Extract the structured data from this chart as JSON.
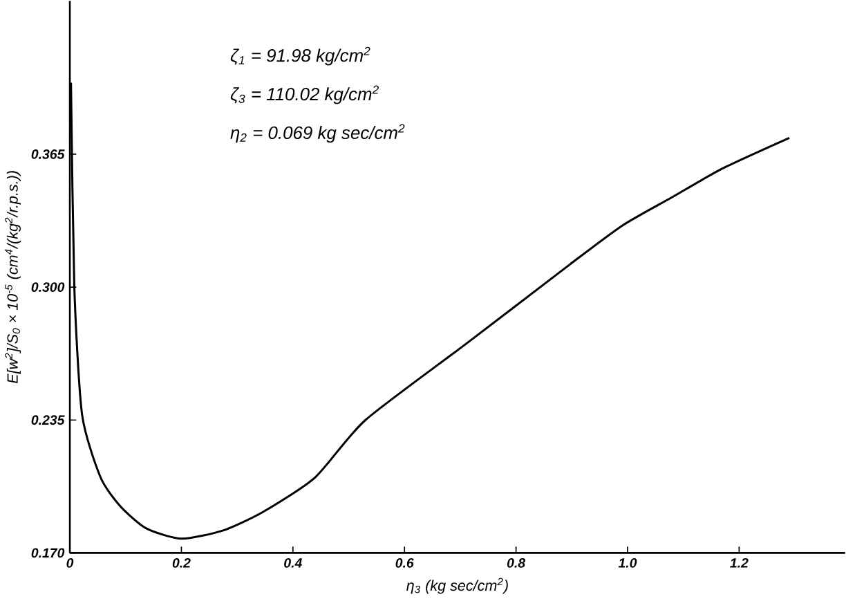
{
  "chart_data": {
    "type": "line",
    "xlabel": "η$_{3}$ (kg sec/cm$^{2}$)",
    "ylabel": "E[w$^{2}$]/S$_{0}$ × 10$^{-5}$ (cm$^{4}$/(kg$^{2}$/r.p.s.))",
    "annotations": [
      "ζ$_{1}$ = 91.98 kg/cm$^{2}$",
      "ζ$_{3}$ = 110.02 kg/cm$^{2}$",
      "η$_{2}$ = 0.069 kg sec/cm$^{2}$"
    ],
    "x": [
      0.002,
      0.008,
      0.022,
      0.055,
      0.09,
      0.137,
      0.2,
      0.275,
      0.346,
      0.44,
      0.53,
      0.714,
      0.896,
      0.99,
      1.08,
      1.17,
      1.29
    ],
    "series": [
      {
        "color": "#000000",
        "values": [
          0.4,
          0.3,
          0.2375,
          0.207,
          0.193,
          0.182,
          0.177,
          0.181,
          0.19,
          0.207,
          0.235,
          0.273,
          0.311,
          0.33,
          0.344,
          0.358,
          0.373
        ]
      }
    ],
    "xlim": [
      0,
      1.39
    ],
    "ylim": [
      0.17,
      0.44
    ],
    "xticks": [
      0,
      0.2,
      0.4,
      0.6,
      0.8,
      {
        "value": 1,
        "label": "1.0"
      },
      1.2
    ],
    "yticks": [
      {
        "value": 0.17,
        "label": "0.170"
      },
      {
        "value": 0.235,
        "label": "0.235"
      },
      {
        "value": 0.3,
        "label": "0.300"
      },
      {
        "value": 0.365,
        "label": "0.365"
      }
    ],
    "grid": false,
    "marker": "none",
    "line_style": "solid"
  }
}
